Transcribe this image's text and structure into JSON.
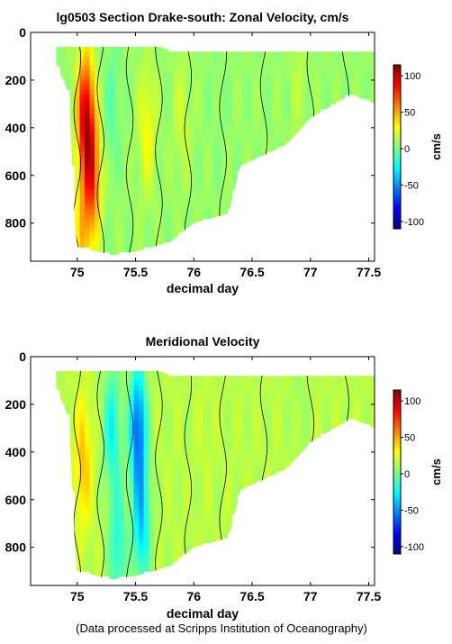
{
  "credit": "(Data processed at Scripps Institution of Oceanography)",
  "colormap": [
    "#000080",
    "#0000ff",
    "#0080ff",
    "#00ffff",
    "#80ff80",
    "#ffff00",
    "#ff8000",
    "#ff0000",
    "#800000"
  ],
  "chart_data": [
    {
      "type": "heatmap",
      "title": "lg0503 Section Drake-south: Zonal Velocity, cm/s",
      "xlabel": "decimal day",
      "ylabel": "",
      "xlim": [
        74.6,
        77.55
      ],
      "ylim": [
        960,
        0
      ],
      "y_inverted": true,
      "xticks": [
        75,
        75.5,
        76,
        76.5,
        77,
        77.5
      ],
      "xtick_labels": [
        "75",
        "75.5",
        "76",
        "76.5",
        "77",
        "77.5"
      ],
      "yticks": [
        0,
        200,
        400,
        600,
        800
      ],
      "ytick_labels": [
        "0",
        "200",
        "400",
        "600",
        "800"
      ],
      "colorbar": {
        "label": "cm/s",
        "range": [
          -110,
          115
        ],
        "ticks": [
          100,
          50,
          0,
          -50,
          -100
        ],
        "tick_labels": [
          "100",
          "50",
          "0",
          "-50",
          "-100"
        ]
      },
      "data_extent": [
        [
          74.82,
          60
        ],
        [
          75.2,
          60
        ],
        [
          75.7,
          60
        ],
        [
          75.83,
          80
        ],
        [
          77.55,
          80
        ],
        [
          77.55,
          300
        ],
        [
          77.35,
          260
        ],
        [
          77.0,
          360
        ],
        [
          76.8,
          470
        ],
        [
          76.4,
          560
        ],
        [
          76.3,
          760
        ],
        [
          76.0,
          800
        ],
        [
          75.8,
          880
        ],
        [
          75.5,
          920
        ],
        [
          75.3,
          935
        ],
        [
          75.0,
          900
        ],
        [
          74.98,
          800
        ],
        [
          74.93,
          260
        ],
        [
          74.82,
          130
        ]
      ],
      "features": [
        {
          "x": 75.07,
          "depth": 350,
          "value": 95
        },
        {
          "x": 75.13,
          "depth": 600,
          "value": 70
        },
        {
          "x": 75.05,
          "depth": 860,
          "value": 40
        },
        {
          "x": 75.6,
          "depth": 400,
          "value": 30
        },
        {
          "x": 75.9,
          "depth": 350,
          "value": 20
        },
        {
          "x": 75.3,
          "depth": 300,
          "value": -5
        },
        {
          "x": 76.2,
          "depth": 300,
          "value": 5
        },
        {
          "x": 76.9,
          "depth": 200,
          "value": 15
        }
      ],
      "background_value": 8
    },
    {
      "type": "heatmap",
      "title": "Meridional Velocity",
      "xlabel": "decimal day",
      "ylabel": "",
      "xlim": [
        74.6,
        77.55
      ],
      "ylim": [
        960,
        0
      ],
      "y_inverted": true,
      "xticks": [
        75,
        75.5,
        76,
        76.5,
        77,
        77.5
      ],
      "xtick_labels": [
        "75",
        "75.5",
        "76",
        "76.5",
        "77",
        "77.5"
      ],
      "yticks": [
        0,
        200,
        400,
        600,
        800
      ],
      "ytick_labels": [
        "0",
        "200",
        "400",
        "600",
        "800"
      ],
      "colorbar": {
        "label": "cm/s",
        "range": [
          -110,
          115
        ],
        "ticks": [
          100,
          50,
          0,
          -50,
          -100
        ],
        "tick_labels": [
          "100",
          "50",
          "0",
          "-50",
          "-100"
        ]
      },
      "data_extent": [
        [
          74.82,
          60
        ],
        [
          75.2,
          60
        ],
        [
          75.7,
          60
        ],
        [
          75.83,
          80
        ],
        [
          77.55,
          80
        ],
        [
          77.55,
          300
        ],
        [
          77.35,
          260
        ],
        [
          77.0,
          360
        ],
        [
          76.8,
          470
        ],
        [
          76.4,
          560
        ],
        [
          76.3,
          760
        ],
        [
          76.0,
          800
        ],
        [
          75.8,
          880
        ],
        [
          75.5,
          920
        ],
        [
          75.3,
          935
        ],
        [
          75.0,
          900
        ],
        [
          74.98,
          800
        ],
        [
          74.93,
          260
        ],
        [
          74.82,
          130
        ]
      ],
      "features": [
        {
          "x": 75.05,
          "depth": 450,
          "value": 45
        },
        {
          "x": 75.3,
          "depth": 300,
          "value": -25
        },
        {
          "x": 75.52,
          "depth": 300,
          "value": -60
        },
        {
          "x": 75.55,
          "depth": 700,
          "value": -35
        },
        {
          "x": 75.35,
          "depth": 800,
          "value": -20
        },
        {
          "x": 76.1,
          "depth": 300,
          "value": 18
        },
        {
          "x": 76.9,
          "depth": 200,
          "value": 10
        }
      ],
      "background_value": 15
    }
  ]
}
